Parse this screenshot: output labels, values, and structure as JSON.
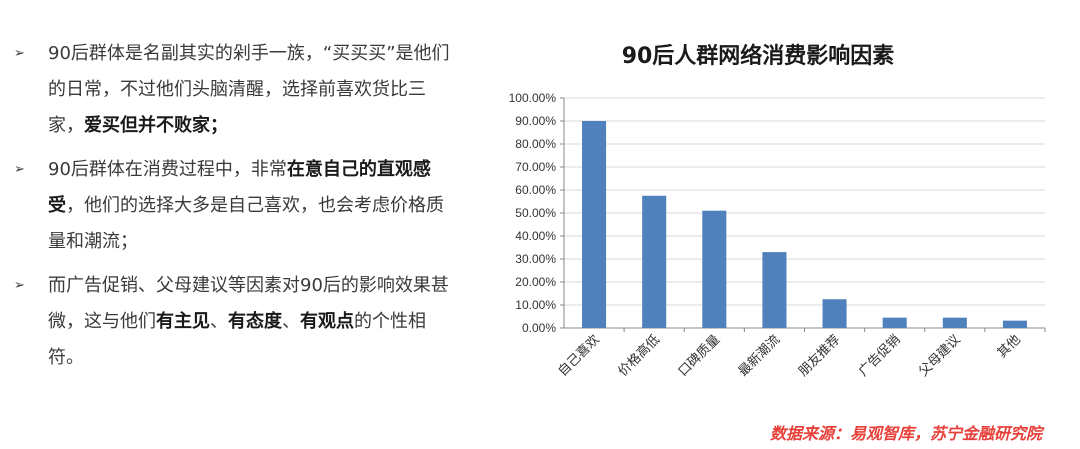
{
  "bullets": [
    {
      "segments": [
        {
          "text": "90后群体是名副其实的剁手一族，“买买买”是他们的日常，不过他们头脑清醒，选择前喜欢货比三家，",
          "bold": false
        },
        {
          "text": "爱买但并不败家；",
          "bold": true
        }
      ]
    },
    {
      "segments": [
        {
          "text": "90后群体在消费过程中，非常",
          "bold": false
        },
        {
          "text": "在意自己的直观感受",
          "bold": true
        },
        {
          "text": "，他们的选择大多是自己喜欢，也会考虑价格质量和潮流；",
          "bold": false
        }
      ]
    },
    {
      "segments": [
        {
          "text": "而广告促销、父母建议等因素对90后的影响效果甚微，这与他们",
          "bold": false
        },
        {
          "text": "有主见",
          "bold": true
        },
        {
          "text": "、",
          "bold": false
        },
        {
          "text": "有态度",
          "bold": true
        },
        {
          "text": "、",
          "bold": false
        },
        {
          "text": "有观点",
          "bold": true
        },
        {
          "text": "的个性相符。",
          "bold": false
        }
      ]
    }
  ],
  "bullet_marker": "➢",
  "source_text": "数据来源：易观智库，苏宁金融研究院",
  "chart_data": {
    "type": "bar",
    "title": "90后人群网络消费影响因素",
    "categories": [
      "自己喜欢",
      "价格高低",
      "口碑质量",
      "最新潮流",
      "朋友推荐",
      "广告促销",
      "父母建议",
      "其他"
    ],
    "values": [
      0.9,
      0.575,
      0.51,
      0.33,
      0.125,
      0.045,
      0.045,
      0.032
    ],
    "yticks": [
      "0.00%",
      "10.00%",
      "20.00%",
      "30.00%",
      "40.00%",
      "50.00%",
      "60.00%",
      "70.00%",
      "80.00%",
      "90.00%",
      "100.00%"
    ],
    "ylim": [
      0,
      1
    ],
    "grid": true,
    "bar_color": "#4f81bd"
  }
}
